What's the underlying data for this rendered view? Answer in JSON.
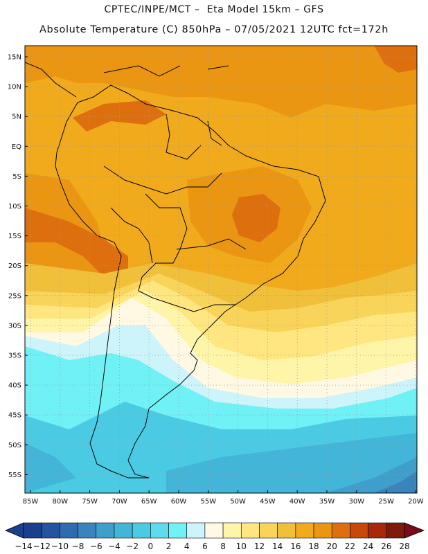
{
  "header": {
    "line1": "CPTEC/INPE/MCT –  Eta Model 15km – GFS",
    "line2": "Absolute Temperature (C) 850hPa – 07/05/2021 12UTC fct=172h"
  },
  "axes": {
    "lat_labels": [
      "15N",
      "10N",
      "5N",
      "EQ",
      "5S",
      "10S",
      "15S",
      "20S",
      "25S",
      "30S",
      "35S",
      "40S",
      "45S",
      "50S",
      "55S"
    ],
    "lon_labels": [
      "85W",
      "80W",
      "75W",
      "70W",
      "65W",
      "60W",
      "55W",
      "50W",
      "45W",
      "40W",
      "35W",
      "30W",
      "25W",
      "20W"
    ]
  },
  "colorbar": {
    "labels": [
      "-14",
      "-12",
      "-10",
      "-8",
      "-6",
      "-4",
      "-2",
      "0",
      "2",
      "4",
      "6",
      "8",
      "10",
      "12",
      "14",
      "16",
      "18",
      "20",
      "22",
      "24",
      "26",
      "28"
    ],
    "colors": [
      "#1b3f8f",
      "#24549f",
      "#2f6bae",
      "#3a83bd",
      "#3f9fcc",
      "#43b5d8",
      "#4acbe3",
      "#5ddcee",
      "#70f1f6",
      "#cdf4fa",
      "#fff9e4",
      "#fff5a8",
      "#ffe680",
      "#f9d45a",
      "#f1c03b",
      "#f0aa1c",
      "#ea9612",
      "#de6f0e",
      "#c8480c",
      "#a8290a",
      "#7e1a0b"
    ]
  },
  "map_colors": {
    "ocean_deep_cold": "#3f9fcc",
    "cold": "#4acbe3",
    "cool": "#70f1f6",
    "very_light": "#cdf4fa",
    "cream": "#fff9e4",
    "pale_yellow": "#fff5a8",
    "yellow": "#ffe680",
    "gold": "#f9d45a",
    "light_orange": "#f1c03b",
    "orange": "#f0aa1c",
    "deep_orange": "#ea9612",
    "hot": "#de6f0e",
    "very_hot": "#c8480c"
  }
}
